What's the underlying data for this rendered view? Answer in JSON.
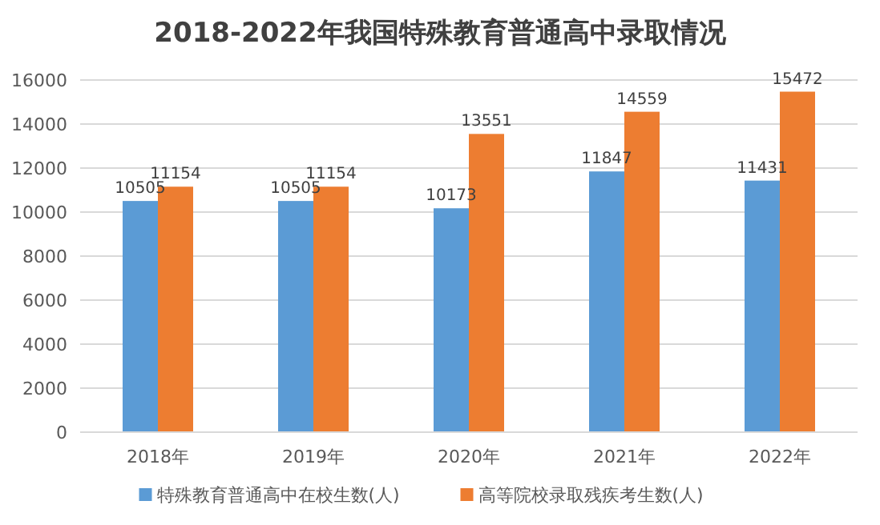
{
  "chart_data": {
    "type": "bar",
    "title": "2018-2022年我国特殊教育普通高中录取情况",
    "categories": [
      "2018年",
      "2019年",
      "2020年",
      "2021年",
      "2022年"
    ],
    "series": [
      {
        "name": "特殊教育普通高中在校生数(人)",
        "color": "#5b9bd5",
        "values": [
          10505,
          10505,
          10173,
          11847,
          11431
        ]
      },
      {
        "name": "高等院校录取残疾考生数(人)",
        "color": "#ed7d31",
        "values": [
          11154,
          11154,
          13551,
          14559,
          15472
        ]
      }
    ],
    "ylim": [
      0,
      16000
    ],
    "yticks": [
      0,
      2000,
      4000,
      6000,
      8000,
      10000,
      12000,
      14000,
      16000
    ],
    "grid": "y",
    "legend": "bottom",
    "data_labels": true
  }
}
